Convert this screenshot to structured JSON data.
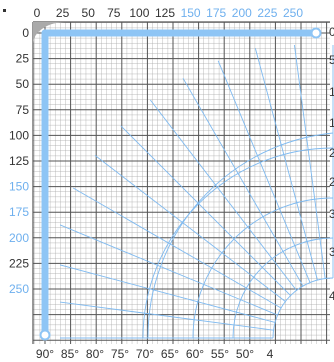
{
  "ruler": {
    "top_ticks": [
      {
        "label": "0",
        "color": "#333333"
      },
      {
        "label": "25",
        "color": "#333333"
      },
      {
        "label": "50",
        "color": "#333333"
      },
      {
        "label": "75",
        "color": "#333333"
      },
      {
        "label": "100",
        "color": "#333333"
      },
      {
        "label": "125",
        "color": "#333333"
      },
      {
        "label": "150",
        "color": "#6fb0ee"
      },
      {
        "label": "175",
        "color": "#6fb0ee"
      },
      {
        "label": "200",
        "color": "#6fb0ee"
      },
      {
        "label": "225",
        "color": "#6fb0ee"
      },
      {
        "label": "250",
        "color": "#6fb0ee"
      }
    ],
    "left_ticks": [
      {
        "label": "0",
        "color": "#333333"
      },
      {
        "label": "25",
        "color": "#333333"
      },
      {
        "label": "50",
        "color": "#333333"
      },
      {
        "label": "75",
        "color": "#333333"
      },
      {
        "label": "100",
        "color": "#333333"
      },
      {
        "label": "125",
        "color": "#333333"
      },
      {
        "label": "150",
        "color": "#6fb0ee"
      },
      {
        "label": "175",
        "color": "#6fb0ee"
      },
      {
        "label": "200",
        "color": "#6fb0ee"
      },
      {
        "label": "225",
        "color": "#333333"
      },
      {
        "label": "250",
        "color": "#6fb0ee"
      }
    ],
    "bottom_ticks": [
      {
        "label": "90°",
        "color": "#333333"
      },
      {
        "label": "85°",
        "color": "#333333"
      },
      {
        "label": "80°",
        "color": "#333333"
      },
      {
        "label": "75°",
        "color": "#333333"
      },
      {
        "label": "70°",
        "color": "#333333"
      },
      {
        "label": "65°",
        "color": "#333333"
      },
      {
        "label": "60°",
        "color": "#333333"
      },
      {
        "label": "55°",
        "color": "#333333"
      },
      {
        "label": "50°",
        "color": "#333333"
      },
      {
        "label": "4",
        "color": "#333333"
      }
    ],
    "right_edge": [
      {
        "label": "0"
      },
      {
        "label": "5"
      },
      {
        "label": "1"
      },
      {
        "label": "1"
      },
      {
        "label": "2"
      },
      {
        "label": "2"
      },
      {
        "label": "3"
      },
      {
        "label": "3"
      },
      {
        "label": "4"
      }
    ]
  },
  "colors": {
    "grid": "#555555",
    "minor_grid": "#aaaaaa",
    "blue_line": "#8ec5f5",
    "arc": "#7fbaf0",
    "corner": "#aaaaaa",
    "text": "#333333"
  }
}
